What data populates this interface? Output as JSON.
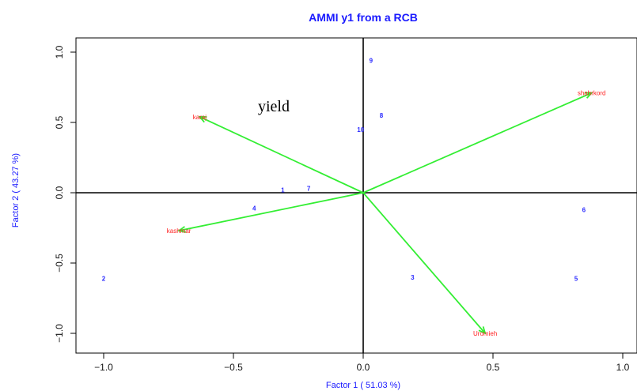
{
  "chart_data": {
    "type": "scatter",
    "title": "AMMI y1 from a RCB",
    "xlabel": "Factor 1 ( 51.03 %)",
    "ylabel": "Factor 2 ( 43.27 %)",
    "annotation": "yield",
    "xlim": [
      -1.1,
      1.05
    ],
    "ylim": [
      -1.08,
      1.05
    ],
    "xticks": [
      "−1.0",
      "−0.5",
      "0.0",
      "0.5",
      "1.0"
    ],
    "xtick_values": [
      -1.0,
      -0.5,
      0.0,
      0.5,
      1.0
    ],
    "yticks": [
      "−1.0",
      "−0.5",
      "0.0",
      "0.5",
      "1.0"
    ],
    "ytick_values": [
      -1.0,
      -0.5,
      0.0,
      0.5,
      1.0
    ],
    "grid": false,
    "reference_lines": {
      "x": 0,
      "y": 0
    },
    "genotypes": [
      {
        "label": "1",
        "x": -0.31,
        "y": 0.02
      },
      {
        "label": "2",
        "x": -1.0,
        "y": -0.61
      },
      {
        "label": "3",
        "x": 0.19,
        "y": -0.6
      },
      {
        "label": "4",
        "x": -0.42,
        "y": -0.11
      },
      {
        "label": "5",
        "x": 0.82,
        "y": -0.61
      },
      {
        "label": "6",
        "x": 0.85,
        "y": -0.12
      },
      {
        "label": "7",
        "x": -0.21,
        "y": 0.03
      },
      {
        "label": "8",
        "x": 0.07,
        "y": 0.55
      },
      {
        "label": "9",
        "x": 0.03,
        "y": 0.94
      },
      {
        "label": "10",
        "x": -0.01,
        "y": 0.45
      }
    ],
    "environments": [
      {
        "label": "karaj",
        "x": -0.63,
        "y": 0.54
      },
      {
        "label": "shahrkord",
        "x": 0.88,
        "y": 0.71
      },
      {
        "label": "kashmar",
        "x": -0.71,
        "y": -0.27
      },
      {
        "label": "Uromieh",
        "x": 0.47,
        "y": -1.0
      }
    ],
    "colors": {
      "title": "#1a1aff",
      "genotype": "#2a2aff",
      "environment": "#ff2020",
      "vector": "#33ee33",
      "axis": "#000000"
    }
  }
}
